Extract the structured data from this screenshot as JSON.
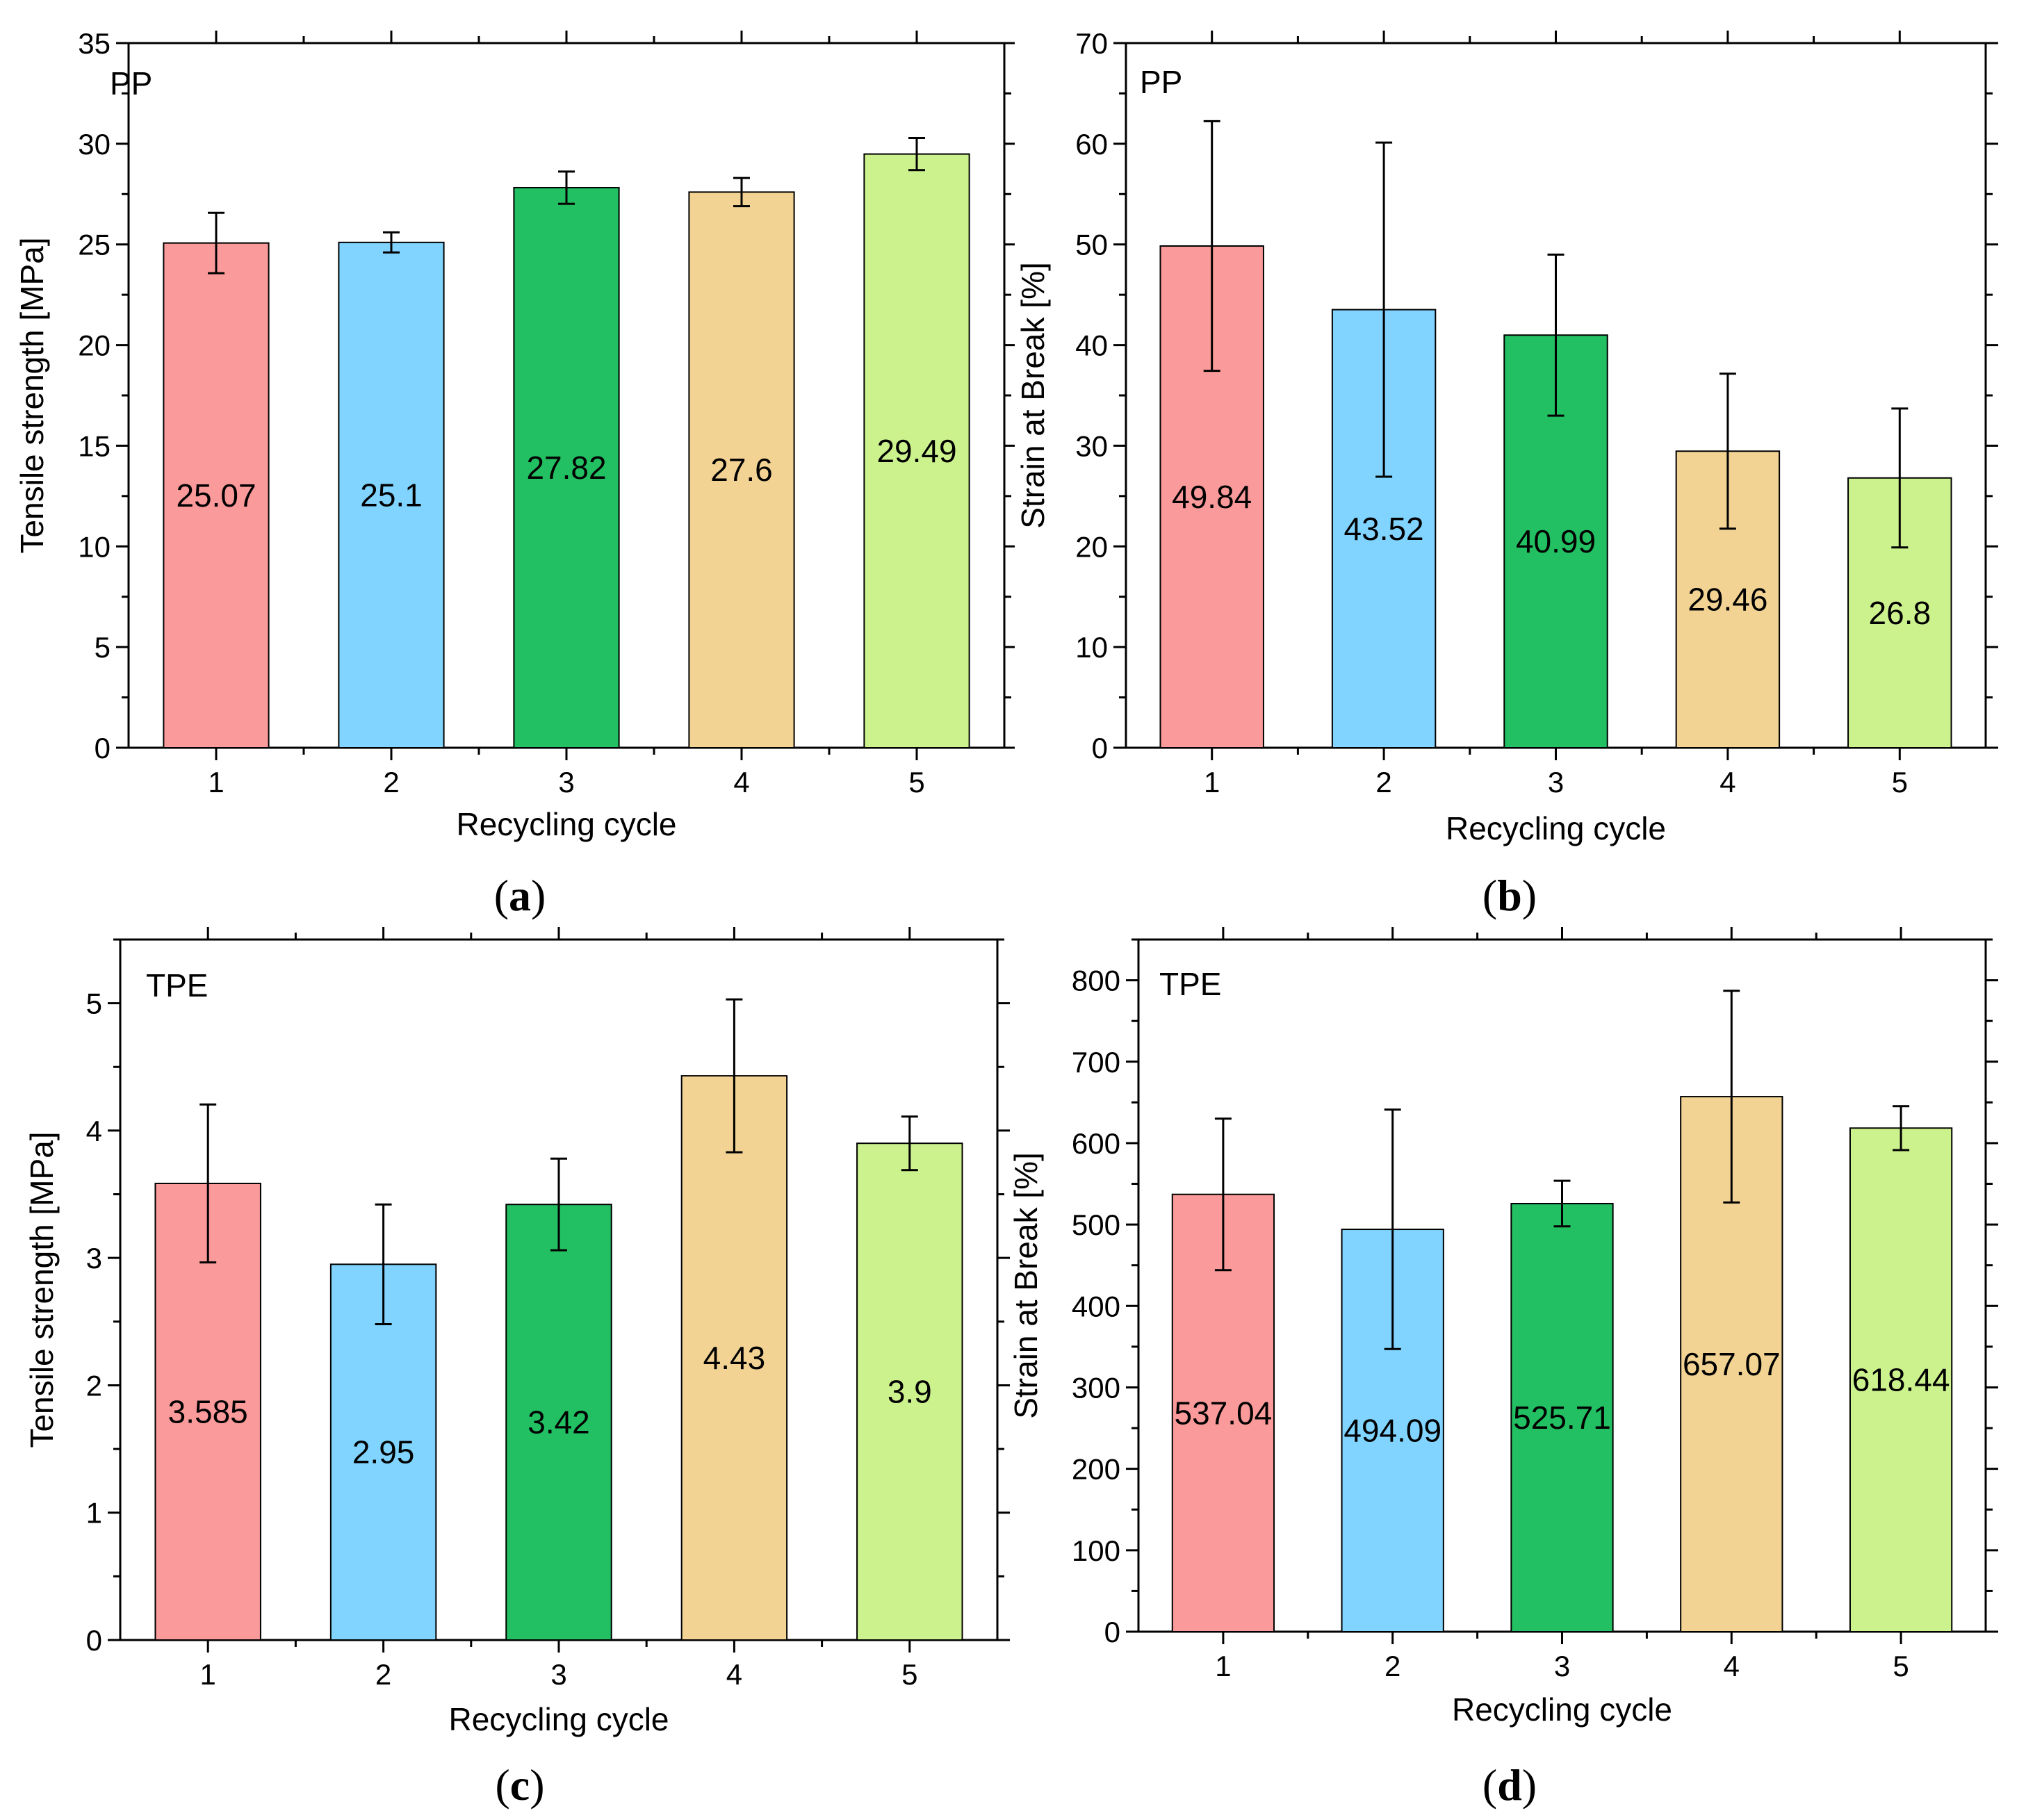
{
  "figure": {
    "panel_labels": [
      "a",
      "b",
      "c",
      "d"
    ]
  },
  "chart_data": [
    {
      "id": "a",
      "type": "bar",
      "title": "",
      "material_label": "PP",
      "xlabel": "Recycling cycle",
      "ylabel": "Tensile strength [MPa]",
      "categories": [
        "1",
        "2",
        "3",
        "4",
        "5"
      ],
      "values": [
        25.07,
        25.1,
        27.82,
        27.6,
        29.49
      ],
      "value_labels": [
        "25.07",
        "25.1",
        "27.82",
        "27.6",
        "29.49"
      ],
      "errors": [
        1.5,
        0.5,
        0.8,
        0.7,
        0.8
      ],
      "colors": [
        "#fb9a9a",
        "#80d4ff",
        "#22c062",
        "#f2d394",
        "#ccf28e"
      ],
      "ylim": [
        0,
        35
      ],
      "yticks": [
        0,
        5,
        10,
        15,
        20,
        25,
        30,
        35
      ],
      "ytick_labels": [
        "0",
        "5",
        "10",
        "15",
        "20",
        "25",
        "30",
        "35"
      ],
      "minor_step": 2.5,
      "grid": false
    },
    {
      "id": "b",
      "type": "bar",
      "title": "",
      "material_label": "PP",
      "xlabel": "Recycling cycle",
      "ylabel": "Strain at Break [%]",
      "categories": [
        "1",
        "2",
        "3",
        "4",
        "5"
      ],
      "values": [
        49.84,
        43.52,
        40.99,
        29.46,
        26.8
      ],
      "value_labels": [
        "49.84",
        "43.52",
        "40.99",
        "29.46",
        "26.8"
      ],
      "errors": [
        12.4,
        16.6,
        8.0,
        7.7,
        6.9
      ],
      "colors": [
        "#fb9a9a",
        "#80d4ff",
        "#22c062",
        "#f2d394",
        "#ccf28e"
      ],
      "ylim": [
        0,
        70
      ],
      "yticks": [
        0,
        10,
        20,
        30,
        40,
        50,
        60,
        70
      ],
      "ytick_labels": [
        "0",
        "10",
        "20",
        "30",
        "40",
        "50",
        "60",
        "70"
      ],
      "minor_step": 5,
      "grid": false
    },
    {
      "id": "c",
      "type": "bar",
      "title": "",
      "material_label": "TPE",
      "xlabel": "Recycling cycle",
      "ylabel": "Tensile strength [MPa]",
      "categories": [
        "1",
        "2",
        "3",
        "4",
        "5"
      ],
      "values": [
        3.585,
        2.95,
        3.42,
        4.43,
        3.9
      ],
      "value_labels": [
        "3.585",
        "2.95",
        "3.42",
        "4.43",
        "3.9"
      ],
      "errors": [
        0.62,
        0.47,
        0.36,
        0.6,
        0.21
      ],
      "colors": [
        "#fb9a9a",
        "#80d4ff",
        "#22c062",
        "#f2d394",
        "#ccf28e"
      ],
      "ylim": [
        0,
        5.5
      ],
      "yticks": [
        0,
        1,
        2,
        3,
        4,
        5
      ],
      "ytick_labels": [
        "0",
        "1",
        "2",
        "3",
        "4",
        "5"
      ],
      "minor_step": 0.5,
      "grid": false
    },
    {
      "id": "d",
      "type": "bar",
      "title": "",
      "material_label": "TPE",
      "xlabel": "Recycling cycle",
      "ylabel": "Strain at Break [%]",
      "categories": [
        "1",
        "2",
        "3",
        "4",
        "5"
      ],
      "values": [
        537.04,
        494.09,
        525.71,
        657.07,
        618.44
      ],
      "value_labels": [
        "537.04",
        "494.09",
        "525.71",
        "657.07",
        "618.44"
      ],
      "errors": [
        93,
        147,
        28,
        130,
        27
      ],
      "colors": [
        "#fb9a9a",
        "#80d4ff",
        "#22c062",
        "#f2d394",
        "#ccf28e"
      ],
      "ylim": [
        0,
        850
      ],
      "yticks": [
        0,
        100,
        200,
        300,
        400,
        500,
        600,
        700,
        800
      ],
      "ytick_labels": [
        "0",
        "100",
        "200",
        "300",
        "400",
        "500",
        "600",
        "700",
        "800"
      ],
      "minor_step": 50,
      "grid": false
    }
  ]
}
